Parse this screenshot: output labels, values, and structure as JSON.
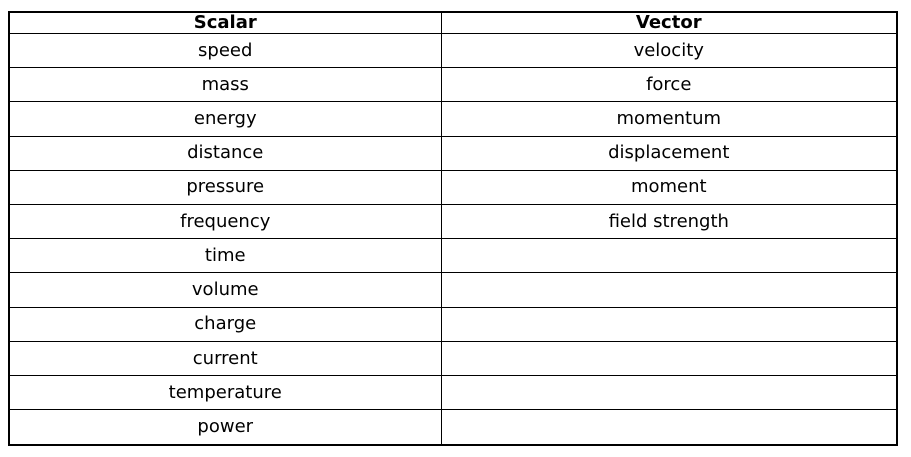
{
  "table": {
    "headers": {
      "scalar": "Scalar",
      "vector": "Vector"
    },
    "rows": [
      {
        "scalar": "speed",
        "vector": "velocity"
      },
      {
        "scalar": "mass",
        "vector": "force"
      },
      {
        "scalar": "energy",
        "vector": "momentum"
      },
      {
        "scalar": "distance",
        "vector": "displacement"
      },
      {
        "scalar": "pressure",
        "vector": "moment"
      },
      {
        "scalar": "frequency",
        "vector": "field strength"
      },
      {
        "scalar": "time",
        "vector": ""
      },
      {
        "scalar": "volume",
        "vector": ""
      },
      {
        "scalar": "charge",
        "vector": ""
      },
      {
        "scalar": "current",
        "vector": ""
      },
      {
        "scalar": "temperature",
        "vector": ""
      },
      {
        "scalar": "power",
        "vector": ""
      }
    ],
    "colors": {
      "border": "#000000",
      "text": "#000000",
      "background": "#ffffff"
    }
  }
}
